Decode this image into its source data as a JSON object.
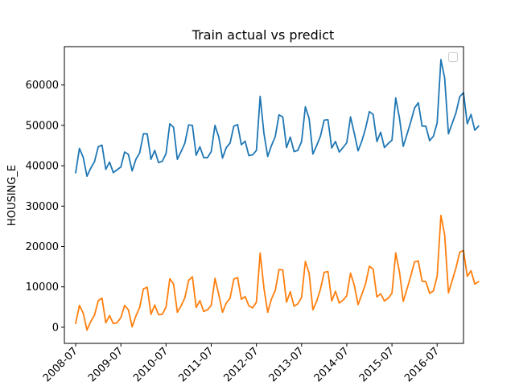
{
  "chart_data": {
    "type": "line",
    "title": "Train actual vs predict",
    "xlabel": "",
    "ylabel": "HOUSING_E",
    "x_start": "2008-07",
    "x_ticks": [
      "2008-07",
      "2009-07",
      "2010-07",
      "2011-07",
      "2012-07",
      "2013-07",
      "2014-07",
      "2015-07",
      "2016-07"
    ],
    "x_range": [
      "2008-04",
      "2017-02"
    ],
    "y_ticks": [
      0,
      10000,
      20000,
      30000,
      40000,
      50000,
      60000
    ],
    "ylim": [
      -4000,
      69500
    ],
    "legend": {
      "position": "top-right",
      "entries": []
    },
    "grid": false,
    "series": [
      {
        "color": "#1f77b4",
        "values": [
          38300,
          44300,
          42100,
          37400,
          39400,
          41000,
          44700,
          45100,
          39100,
          40900,
          38300,
          39000,
          39700,
          43400,
          42800,
          38700,
          41600,
          43200,
          47900,
          47900,
          41600,
          43800,
          40800,
          41100,
          43000,
          50400,
          49500,
          41600,
          43500,
          45600,
          50100,
          50000,
          42600,
          44700,
          42000,
          42000,
          43500,
          50000,
          47100,
          41900,
          44500,
          45600,
          49800,
          50200,
          45200,
          46100,
          42500,
          42700,
          43800,
          57200,
          48000,
          42300,
          45000,
          47200,
          52600,
          52100,
          44500,
          47100,
          43500,
          43800,
          46000,
          54600,
          51700,
          42900,
          45000,
          47300,
          51300,
          51400,
          44400,
          46000,
          43400,
          44500,
          45700,
          52100,
          48000,
          43700,
          46100,
          49300,
          53400,
          52700,
          46000,
          48300,
          44500,
          45500,
          46300,
          56800,
          51800,
          44800,
          47800,
          50900,
          54300,
          55600,
          49800,
          49800,
          46200,
          47300,
          50600,
          66300,
          61700,
          47900,
          50500,
          53100,
          57100,
          58100,
          50400,
          52700,
          48800,
          49800
        ]
      },
      {
        "color": "#ff7f0e",
        "values": [
          1000,
          5400,
          3500,
          -700,
          1400,
          3000,
          6600,
          7200,
          1100,
          2900,
          900,
          1100,
          2400,
          5400,
          4300,
          100,
          2800,
          4900,
          9500,
          9900,
          3200,
          5500,
          3100,
          3200,
          5000,
          12000,
          10700,
          3700,
          5300,
          7300,
          11600,
          12500,
          4900,
          6600,
          3900,
          4300,
          5400,
          12100,
          8100,
          3700,
          6000,
          7200,
          11900,
          12300,
          6900,
          7600,
          5300,
          4800,
          6200,
          18400,
          9700,
          3700,
          7000,
          9100,
          14300,
          14200,
          6200,
          8800,
          5200,
          5800,
          7400,
          16300,
          13400,
          4300,
          6400,
          9400,
          13600,
          13800,
          6500,
          8900,
          6000,
          6700,
          7800,
          13400,
          10400,
          5600,
          8100,
          10800,
          15100,
          14400,
          7500,
          8300,
          6500,
          7200,
          8400,
          18400,
          13700,
          6400,
          9500,
          12700,
          16200,
          16400,
          11400,
          11300,
          8400,
          9000,
          12600,
          27700,
          22900,
          8500,
          11600,
          14700,
          18600,
          19000,
          12600,
          14000,
          10700,
          11300
        ]
      }
    ]
  }
}
